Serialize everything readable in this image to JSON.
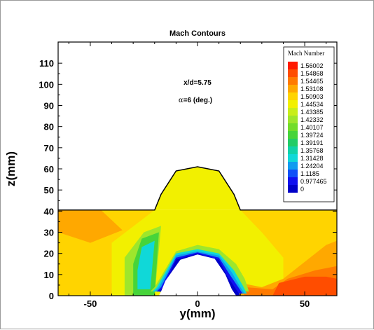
{
  "chart_data": {
    "type": "heatmap",
    "title": "Mach Contours",
    "xlabel": "y(mm)",
    "ylabel": "z(mm)",
    "xlim": [
      -65,
      65
    ],
    "ylim": [
      0,
      120
    ],
    "x_ticks": [
      {
        "value": -50,
        "label": "-50"
      },
      {
        "value": 0,
        "label": "0"
      },
      {
        "value": 50,
        "label": "50"
      }
    ],
    "y_ticks": [
      {
        "value": 0,
        "label": "0"
      },
      {
        "value": 10,
        "label": "10"
      },
      {
        "value": 20,
        "label": "20"
      },
      {
        "value": 30,
        "label": "30"
      },
      {
        "value": 40,
        "label": "40"
      },
      {
        "value": 50,
        "label": "50"
      },
      {
        "value": 60,
        "label": "60"
      },
      {
        "value": 70,
        "label": "70"
      },
      {
        "value": 80,
        "label": "80"
      },
      {
        "value": 90,
        "label": "90"
      },
      {
        "value": 100,
        "label": "100"
      },
      {
        "value": 110,
        "label": "110"
      }
    ],
    "annotations": [
      {
        "text": "x/d=5.75",
        "x": 0,
        "y": 95
      },
      {
        "symbol": "α",
        "text": "=6 (deg.)",
        "x": -1,
        "y": 85
      }
    ],
    "legend": {
      "title": "Mach Number",
      "placement": "top-right",
      "levels": [
        {
          "label": "1.56002",
          "color": "#ff1a00"
        },
        {
          "label": "1.54868",
          "color": "#ff4d00"
        },
        {
          "label": "1.54465",
          "color": "#ff7a00"
        },
        {
          "label": "1.53108",
          "color": "#ffa800"
        },
        {
          "label": "1.50903",
          "color": "#ffd400"
        },
        {
          "label": "1.44534",
          "color": "#f2f000"
        },
        {
          "label": "1.43385",
          "color": "#c8ee1a"
        },
        {
          "label": "1.42332",
          "color": "#9ee62c"
        },
        {
          "label": "1.40107",
          "color": "#72dc2a"
        },
        {
          "label": "1.39724",
          "color": "#46d43a"
        },
        {
          "label": "1.39191",
          "color": "#22cc66"
        },
        {
          "label": "1.35768",
          "color": "#10d2a8"
        },
        {
          "label": "1.31428",
          "color": "#10d8d8"
        },
        {
          "label": "1.24204",
          "color": "#109cf0"
        },
        {
          "label": "1.1185",
          "color": "#1050f8"
        },
        {
          "label": "0.977465",
          "color": "#1010f0"
        },
        {
          "label": "0",
          "color": "#0000c8"
        }
      ]
    },
    "regions": [
      {
        "color": "#f2f000",
        "polygon": [
          [
            -65,
            0
          ],
          [
            65,
            0
          ],
          [
            65,
            40.5
          ],
          [
            -65,
            40.5
          ]
        ]
      },
      {
        "color": "#ffd400",
        "polygon": [
          [
            -65,
            0
          ],
          [
            -40,
            0
          ],
          [
            -40,
            25
          ],
          [
            -20,
            40.5
          ],
          [
            -65,
            40.5
          ]
        ]
      },
      {
        "color": "#ffd400",
        "polygon": [
          [
            20,
            40.5
          ],
          [
            65,
            40.5
          ],
          [
            65,
            0
          ],
          [
            40,
            0
          ],
          [
            40,
            18
          ],
          [
            30,
            30
          ]
        ]
      },
      {
        "color": "#ffa800",
        "polygon": [
          [
            -65,
            40.5
          ],
          [
            -45,
            40.5
          ],
          [
            -35,
            31
          ],
          [
            -50,
            25
          ],
          [
            -65,
            30
          ]
        ]
      },
      {
        "color": "#ffa800",
        "polygon": [
          [
            12,
            15
          ],
          [
            20,
            6
          ],
          [
            30,
            4
          ],
          [
            40,
            8
          ],
          [
            50,
            16
          ],
          [
            60,
            24
          ],
          [
            65,
            26
          ],
          [
            65,
            0
          ],
          [
            20,
            0
          ]
        ]
      },
      {
        "color": "#ff7a00",
        "polygon": [
          [
            15,
            11
          ],
          [
            22,
            4
          ],
          [
            35,
            3
          ],
          [
            42,
            8
          ],
          [
            55,
            12
          ],
          [
            65,
            14
          ],
          [
            65,
            0
          ],
          [
            22,
            0
          ]
        ]
      },
      {
        "color": "#ff4d00",
        "polygon": [
          [
            38,
            6
          ],
          [
            50,
            9
          ],
          [
            60,
            9
          ],
          [
            65,
            8
          ],
          [
            65,
            0
          ],
          [
            35,
            0
          ]
        ]
      },
      {
        "color": "#9ee62c",
        "polygon": [
          [
            -34,
            0
          ],
          [
            -20,
            0
          ],
          [
            -17,
            33
          ],
          [
            -25,
            30
          ],
          [
            -34,
            18
          ]
        ]
      },
      {
        "color": "#46d43a",
        "polygon": [
          [
            -30,
            0
          ],
          [
            -20,
            0
          ],
          [
            -18,
            30
          ],
          [
            -26,
            27
          ],
          [
            -30,
            15
          ]
        ]
      },
      {
        "color": "#10d8d8",
        "polygon": [
          [
            -28,
            3
          ],
          [
            -22,
            3
          ],
          [
            -20,
            26
          ],
          [
            -26,
            23
          ],
          [
            -28,
            12
          ]
        ]
      },
      {
        "color": "#f2f000",
        "polygon": [
          [
            -20,
            40.5
          ],
          [
            -17,
            48
          ],
          [
            -10,
            59
          ],
          [
            0,
            61
          ],
          [
            10,
            59
          ],
          [
            17,
            48
          ],
          [
            20,
            40.5
          ]
        ]
      },
      {
        "color": "#9ee62c",
        "polygon": [
          [
            -20,
            4
          ],
          [
            -10,
            21
          ],
          [
            0,
            24
          ],
          [
            10,
            22
          ],
          [
            18,
            15
          ],
          [
            22,
            8
          ],
          [
            24,
            2
          ],
          [
            -22,
            2
          ]
        ]
      },
      {
        "color": "#10d8d8",
        "polygon": [
          [
            -19,
            4
          ],
          [
            -10,
            20
          ],
          [
            0,
            22
          ],
          [
            10,
            20
          ],
          [
            17,
            12
          ],
          [
            21,
            5
          ],
          [
            23,
            1
          ],
          [
            -21,
            2
          ]
        ]
      },
      {
        "color": "#109cf0",
        "polygon": [
          [
            -18,
            4
          ],
          [
            -10,
            19
          ],
          [
            0,
            21
          ],
          [
            10,
            19
          ],
          [
            16,
            11
          ],
          [
            20,
            4
          ],
          [
            22,
            1
          ],
          [
            -20,
            2
          ]
        ]
      },
      {
        "color": "#1010f0",
        "polygon": [
          [
            -17,
            4
          ],
          [
            -10,
            18
          ],
          [
            0,
            20.5
          ],
          [
            10,
            18
          ],
          [
            15,
            10
          ],
          [
            19,
            4
          ],
          [
            21,
            1
          ],
          [
            -19,
            2
          ]
        ]
      },
      {
        "color": "#0000c8",
        "polygon": [
          [
            -16,
            4
          ],
          [
            -10,
            17
          ],
          [
            0,
            20
          ],
          [
            10,
            17
          ],
          [
            14,
            9
          ],
          [
            18,
            3
          ],
          [
            20,
            0
          ],
          [
            -18,
            2
          ]
        ]
      },
      {
        "color": "#ffffff",
        "polygon": [
          [
            -17,
            2
          ],
          [
            -15,
            7
          ],
          [
            -8,
            17
          ],
          [
            0,
            19.5
          ],
          [
            8,
            17.5
          ],
          [
            13,
            10
          ],
          [
            16,
            3
          ],
          [
            18,
            0
          ],
          [
            -18,
            0
          ]
        ]
      }
    ],
    "boundary": [
      [
        -65,
        40.5
      ],
      [
        -20,
        40.5
      ],
      [
        -17,
        48
      ],
      [
        -10,
        59
      ],
      [
        0,
        61
      ],
      [
        10,
        59
      ],
      [
        17,
        48
      ],
      [
        20,
        40.5
      ],
      [
        65,
        40.5
      ]
    ]
  }
}
